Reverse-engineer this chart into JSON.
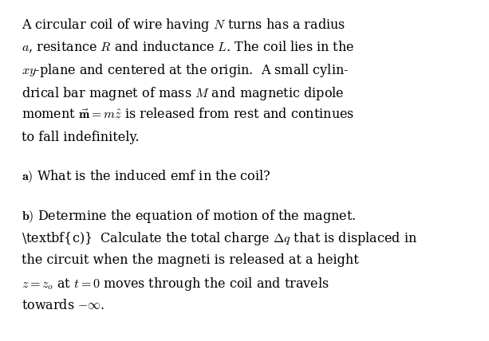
{
  "background_color": "#ffffff",
  "figsize": [
    6.13,
    4.28
  ],
  "dpi": 100,
  "text_color": "#000000",
  "font_size": 11.5,
  "paragraph1": [
    "A circular coil of wire having $N$ turns has a radius",
    "$a$, resitance $R$ and inductance $L$. The coil lies in the",
    "$xy$-plane and centered at the origin.  A small cylin-",
    "drical bar magnet of mass $M$ and magnetic dipole",
    "moment $\\vec{\\mathbf{m}} = m\\hat{z}$ is released from rest and continues",
    "to fall indefinitely."
  ],
  "part_a": "\\textbf{a)}  What is the induced emf in the coil?",
  "part_b": "\\textbf{b)}  Determine the equation of motion of the magnet.",
  "part_c_lines": [
    "\\textbf{c)}  Calculate the total charge $\\Delta q$ that is displaced in",
    "the circuit when the magneti is released at a height",
    "$z = z_o$ at $t = 0$ moves through the coil and travels",
    "towards $-\\infty$."
  ]
}
